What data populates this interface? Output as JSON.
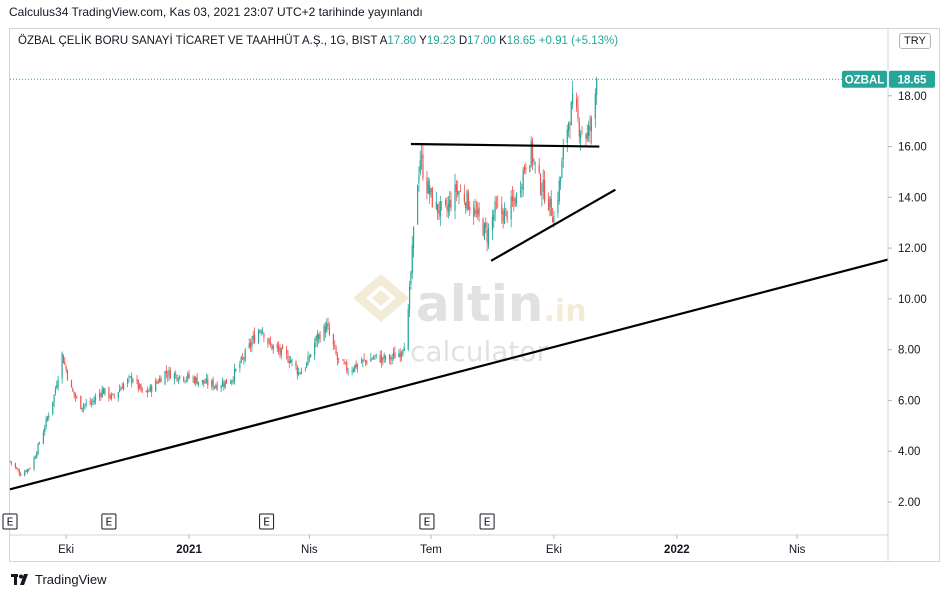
{
  "header": {
    "published_line": "Calculus34 TradingView.com, Kas 03, 2021 23:07 UTC+2 tarihinde yayınlandı",
    "symbol_desc": "ÖZBAL ÇELİK BORU SANAYİ TİCARET VE TAAHHÜT A.Ş., 1G, BIST",
    "ohlc": [
      {
        "key": "A",
        "value": "17.80"
      },
      {
        "key": "Y",
        "value": "19.23"
      },
      {
        "key": "D",
        "value": "17.00"
      },
      {
        "key": "K",
        "value": "18.65"
      }
    ],
    "change": "+0.91 (+5.13%)",
    "currency": "TRY"
  },
  "price_label": {
    "ticker": "OZBAL",
    "price": "18.65",
    "color": "#26a69a"
  },
  "watermark": {
    "brand_main": "altin",
    "brand_suffix": ".in",
    "brand_sub": "calculator"
  },
  "footer": {
    "brand": "TradingView"
  },
  "chart_data": {
    "type": "candlestick",
    "symbol": "OZBAL",
    "interval": "1G",
    "exchange": "BIST",
    "currency": "TRY",
    "up_color": "#26a69a",
    "down_color": "#ef5350",
    "y_ticks": [
      2,
      4,
      6,
      8,
      10,
      12,
      14,
      16,
      18
    ],
    "y_tick_labels": [
      "2.00",
      "4.00",
      "6.00",
      "8.00",
      "10.00",
      "12.00",
      "14.00",
      "16.00",
      "18.00"
    ],
    "ylim": [
      0.7,
      20.0
    ],
    "x_axis": {
      "start": "2020-08-20",
      "end": "2022-06-08",
      "ticks": [
        {
          "date": "2020-10-01",
          "label": "Eki",
          "year": false
        },
        {
          "date": "2021-01-01",
          "label": "2021",
          "year": true
        },
        {
          "date": "2021-04-01",
          "label": "Nis",
          "year": false
        },
        {
          "date": "2021-07-01",
          "label": "Tem",
          "year": false
        },
        {
          "date": "2021-10-01",
          "label": "Eki",
          "year": false
        },
        {
          "date": "2022-01-01",
          "label": "2022",
          "year": true
        },
        {
          "date": "2022-04-01",
          "label": "Nis",
          "year": false
        }
      ]
    },
    "last_price": 18.65,
    "earnings_markers": {
      "label": "E",
      "dates": [
        "2020-08-20",
        "2020-11-02",
        "2021-02-28",
        "2021-06-28",
        "2021-08-12"
      ]
    },
    "trendlines": [
      {
        "start": [
          "2020-08-20",
          2.5
        ],
        "end": [
          "2022-06-08",
          11.55
        ]
      },
      {
        "start": [
          "2021-06-16",
          16.1
        ],
        "end": [
          "2021-11-04",
          16.0
        ]
      },
      {
        "start": [
          "2021-08-15",
          11.5
        ],
        "end": [
          "2021-11-16",
          14.3
        ]
      }
    ],
    "price_path": [
      [
        "2020-08-20",
        3.6
      ],
      [
        "2020-08-28",
        3.1
      ],
      [
        "2020-09-05",
        3.4
      ],
      [
        "2020-09-14",
        4.8
      ],
      [
        "2020-09-22",
        6.2
      ],
      [
        "2020-09-28",
        7.8
      ],
      [
        "2020-10-05",
        6.4
      ],
      [
        "2020-10-12",
        5.8
      ],
      [
        "2020-10-20",
        5.9
      ],
      [
        "2020-10-28",
        6.4
      ],
      [
        "2020-11-05",
        6.1
      ],
      [
        "2020-11-12",
        6.6
      ],
      [
        "2020-11-20",
        6.9
      ],
      [
        "2020-11-28",
        6.2
      ],
      [
        "2020-12-06",
        6.6
      ],
      [
        "2020-12-14",
        7.1
      ],
      [
        "2020-12-22",
        7.0
      ],
      [
        "2021-01-01",
        6.9
      ],
      [
        "2021-01-12",
        6.7
      ],
      [
        "2021-01-22",
        6.6
      ],
      [
        "2021-02-01",
        6.8
      ],
      [
        "2021-02-10",
        7.6
      ],
      [
        "2021-02-18",
        8.4
      ],
      [
        "2021-02-24",
        8.9
      ],
      [
        "2021-03-02",
        8.2
      ],
      [
        "2021-03-10",
        7.9
      ],
      [
        "2021-03-18",
        7.6
      ],
      [
        "2021-03-24",
        7.1
      ],
      [
        "2021-03-30",
        7.4
      ],
      [
        "2021-04-06",
        8.4
      ],
      [
        "2021-04-14",
        8.9
      ],
      [
        "2021-04-22",
        7.6
      ],
      [
        "2021-04-30",
        7.2
      ],
      [
        "2021-05-10",
        7.5
      ],
      [
        "2021-05-20",
        7.7
      ],
      [
        "2021-05-30",
        7.6
      ],
      [
        "2021-06-08",
        7.9
      ],
      [
        "2021-06-13",
        8.6
      ],
      [
        "2021-06-16",
        11.0
      ],
      [
        "2021-06-20",
        14.2
      ],
      [
        "2021-06-23",
        15.6
      ],
      [
        "2021-06-27",
        14.6
      ],
      [
        "2021-07-04",
        13.6
      ],
      [
        "2021-07-12",
        13.4
      ],
      [
        "2021-07-20",
        14.3
      ],
      [
        "2021-07-28",
        13.9
      ],
      [
        "2021-08-05",
        13.2
      ],
      [
        "2021-08-12",
        12.5
      ],
      [
        "2021-08-18",
        13.5
      ],
      [
        "2021-08-26",
        13.3
      ],
      [
        "2021-09-03",
        14.0
      ],
      [
        "2021-09-10",
        15.4
      ],
      [
        "2021-09-14",
        15.8
      ],
      [
        "2021-09-20",
        14.6
      ],
      [
        "2021-09-26",
        14.0
      ],
      [
        "2021-10-01",
        13.2
      ],
      [
        "2021-10-06",
        14.8
      ],
      [
        "2021-10-10",
        16.6
      ],
      [
        "2021-10-15",
        17.6
      ],
      [
        "2021-10-20",
        16.8
      ],
      [
        "2021-10-26",
        16.4
      ],
      [
        "2021-10-30",
        17.0
      ],
      [
        "2021-11-02",
        18.65
      ]
    ]
  }
}
